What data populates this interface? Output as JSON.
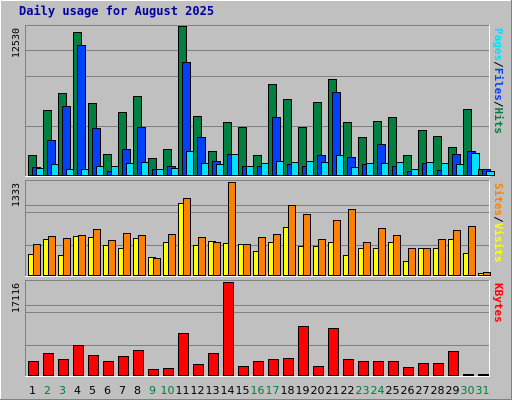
{
  "title": "Daily usage for August 2025",
  "colors": {
    "background": "#c0c0c0",
    "title": "#0000a0",
    "hits": "#008040",
    "files": "#0040ff",
    "pages": "#00e0ff",
    "visits": "#ffff00",
    "sites": "#ff8000",
    "kbytes": "#ff0000",
    "weekday": "#000000",
    "weekend": "#008040"
  },
  "chart_data": [
    {
      "type": "bar",
      "panel": "hits-files-pages",
      "y_label_parts": [
        "Pages",
        "/",
        "Files",
        "/",
        "Hits"
      ],
      "ymax_label": "12530",
      "ylim": [
        0,
        12530
      ],
      "categories": [
        "1",
        "2",
        "3",
        "4",
        "5",
        "6",
        "7",
        "8",
        "9",
        "10",
        "11",
        "12",
        "13",
        "14",
        "15",
        "16",
        "17",
        "18",
        "19",
        "20",
        "21",
        "22",
        "23",
        "24",
        "25",
        "26",
        "27",
        "28",
        "29",
        "30",
        "31"
      ],
      "weekend_days": [
        "2",
        "3",
        "9",
        "10",
        "16",
        "17",
        "23",
        "24",
        "30",
        "31"
      ],
      "series": [
        {
          "name": "Hits",
          "values": [
            1700,
            5500,
            6900,
            12100,
            6100,
            1800,
            5300,
            6700,
            1400,
            2200,
            12600,
            5000,
            2000,
            4500,
            4100,
            1700,
            7700,
            6400,
            4100,
            6200,
            8100,
            4500,
            3200,
            4600,
            4900,
            1700,
            3800,
            3300,
            2400,
            5600,
            500
          ]
        },
        {
          "name": "Files",
          "values": [
            700,
            3000,
            5800,
            11000,
            4000,
            300,
            2200,
            4100,
            500,
            800,
            9600,
            3200,
            1200,
            1800,
            800,
            800,
            4900,
            900,
            800,
            1700,
            7000,
            1500,
            900,
            2600,
            800,
            300,
            1000,
            400,
            1800,
            2000,
            500
          ]
        },
        {
          "name": "Pages",
          "values": [
            600,
            900,
            500,
            500,
            800,
            800,
            1000,
            1100,
            500,
            600,
            2000,
            1000,
            900,
            1800,
            800,
            1000,
            1200,
            1100,
            1200,
            1100,
            1700,
            700,
            1000,
            1000,
            1100,
            500,
            1100,
            1000,
            900,
            1900,
            300
          ]
        }
      ]
    },
    {
      "type": "bar",
      "panel": "sites-visits",
      "y_label_parts": [
        "Sites",
        "/",
        "Visits"
      ],
      "ymax_label": "1333",
      "ylim": [
        0,
        1333
      ],
      "categories": [
        "1",
        "2",
        "3",
        "4",
        "5",
        "6",
        "7",
        "8",
        "9",
        "10",
        "11",
        "12",
        "13",
        "14",
        "15",
        "16",
        "17",
        "18",
        "19",
        "20",
        "21",
        "22",
        "23",
        "24",
        "25",
        "26",
        "27",
        "28",
        "29",
        "30",
        "31"
      ],
      "series": [
        {
          "name": "Visits",
          "values": [
            300,
            520,
            290,
            560,
            540,
            430,
            380,
            530,
            260,
            470,
            1030,
            430,
            490,
            460,
            440,
            350,
            480,
            690,
            420,
            420,
            480,
            280,
            380,
            380,
            470,
            200,
            390,
            380,
            520,
            320,
            30
          ]
        },
        {
          "name": "Sites",
          "values": [
            450,
            560,
            530,
            580,
            660,
            500,
            600,
            570,
            250,
            590,
            1100,
            550,
            470,
            1330,
            450,
            550,
            590,
            1000,
            870,
            520,
            790,
            950,
            480,
            680,
            570,
            390,
            380,
            520,
            640,
            700,
            50
          ]
        }
      ]
    },
    {
      "type": "bar",
      "panel": "kbytes",
      "y_label_parts": [
        "KBytes"
      ],
      "ymax_label": "17116",
      "ylim": [
        0,
        17116
      ],
      "categories": [
        "1",
        "2",
        "3",
        "4",
        "5",
        "6",
        "7",
        "8",
        "9",
        "10",
        "11",
        "12",
        "13",
        "14",
        "15",
        "16",
        "17",
        "18",
        "19",
        "20",
        "21",
        "22",
        "23",
        "24",
        "25",
        "26",
        "27",
        "28",
        "29",
        "30",
        "31"
      ],
      "series": [
        {
          "name": "KBytes",
          "values": [
            2500,
            4000,
            3000,
            5600,
            3700,
            2600,
            3500,
            4600,
            1100,
            1200,
            7700,
            2000,
            4100,
            17100,
            1700,
            2500,
            3000,
            3100,
            9000,
            1600,
            8700,
            2900,
            2600,
            2600,
            2500,
            1500,
            2300,
            2200,
            4500,
            100,
            200
          ]
        }
      ]
    }
  ]
}
